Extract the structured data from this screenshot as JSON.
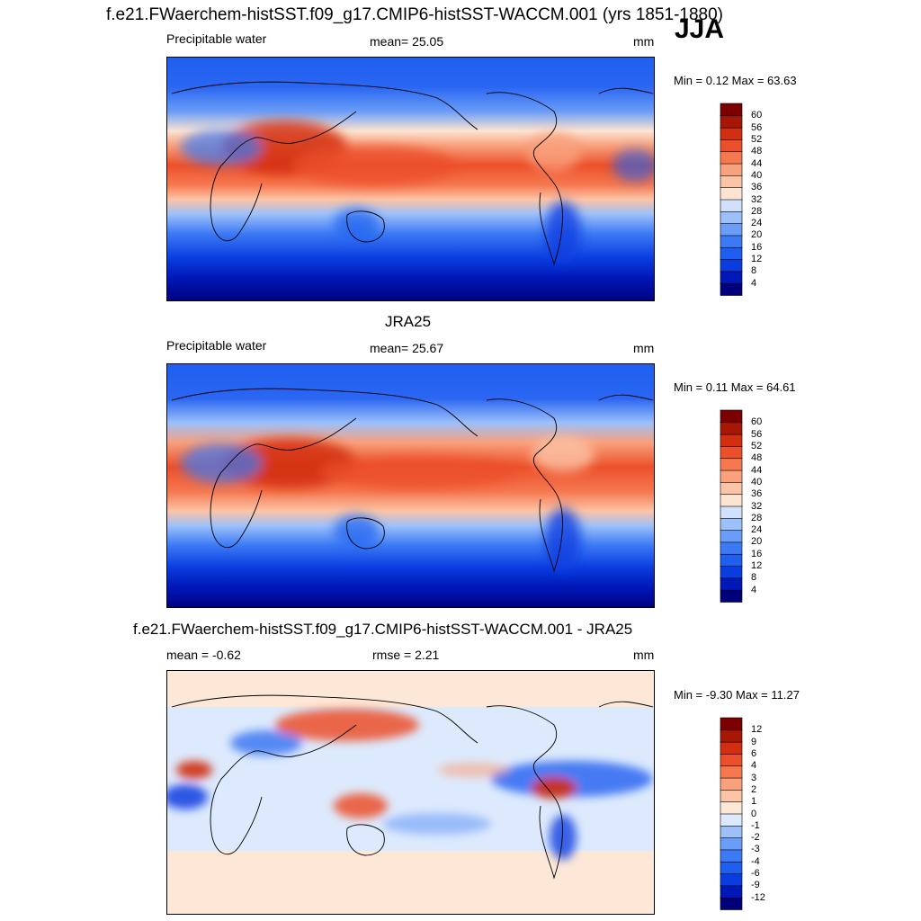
{
  "header": {
    "title": "f.e21.FWaerchem-histSST.f09_g17.CMIP6-histSST-WACCM.001 (yrs 1851-1880)",
    "season": "JJA"
  },
  "panels": [
    {
      "id": "model",
      "title": "",
      "left_label": "Precipitable water",
      "center_label": "mean=  25.05",
      "units": "mm",
      "minmax": "Min =   0.12 Max =  63.63",
      "colorbar": {
        "levels": [
          "4",
          "8",
          "12",
          "16",
          "20",
          "24",
          "28",
          "32",
          "36",
          "40",
          "44",
          "48",
          "52",
          "56",
          "60"
        ],
        "colors": [
          "#00007d",
          "#0018b8",
          "#0a3de0",
          "#1f5ff0",
          "#3c7af5",
          "#6a9df7",
          "#9dc0fa",
          "#cfe1fc",
          "#fde4d2",
          "#fcc4a6",
          "#f9a07c",
          "#f5784f",
          "#ec502a",
          "#d22e10",
          "#a81606",
          "#7d0000"
        ]
      }
    },
    {
      "id": "obs",
      "title": "JRA25",
      "left_label": "Precipitable water",
      "center_label": "mean=  25.67",
      "units": "mm",
      "minmax": "Min =   0.11 Max =  64.61",
      "colorbar": {
        "levels": [
          "4",
          "8",
          "12",
          "16",
          "20",
          "24",
          "28",
          "32",
          "36",
          "40",
          "44",
          "48",
          "52",
          "56",
          "60"
        ],
        "colors": [
          "#00007d",
          "#0018b8",
          "#0a3de0",
          "#1f5ff0",
          "#3c7af5",
          "#6a9df7",
          "#9dc0fa",
          "#cfe1fc",
          "#fde4d2",
          "#fcc4a6",
          "#f9a07c",
          "#f5784f",
          "#ec502a",
          "#d22e10",
          "#a81606",
          "#7d0000"
        ]
      }
    },
    {
      "id": "diff",
      "title": "f.e21.FWaerchem-histSST.f09_g17.CMIP6-histSST-WACCM.001 - JRA25",
      "left_label": "mean =  -0.62",
      "center_label": "rmse =   2.21",
      "units": "mm",
      "minmax": "Min =  -9.30 Max =  11.27",
      "colorbar": {
        "levels": [
          "-12",
          "-9",
          "-6",
          "-4",
          "-3",
          "-2",
          "-1",
          "0",
          "1",
          "2",
          "3",
          "4",
          "6",
          "9",
          "12"
        ],
        "colors": [
          "#00007d",
          "#0018b8",
          "#0a3de0",
          "#1f5ff0",
          "#3c7af5",
          "#6a9df7",
          "#9dc0fa",
          "#ddeafd",
          "#fde8d8",
          "#fcc4a6",
          "#f9a07c",
          "#f5784f",
          "#ec502a",
          "#d22e10",
          "#a81606",
          "#7d0000"
        ]
      }
    }
  ]
}
